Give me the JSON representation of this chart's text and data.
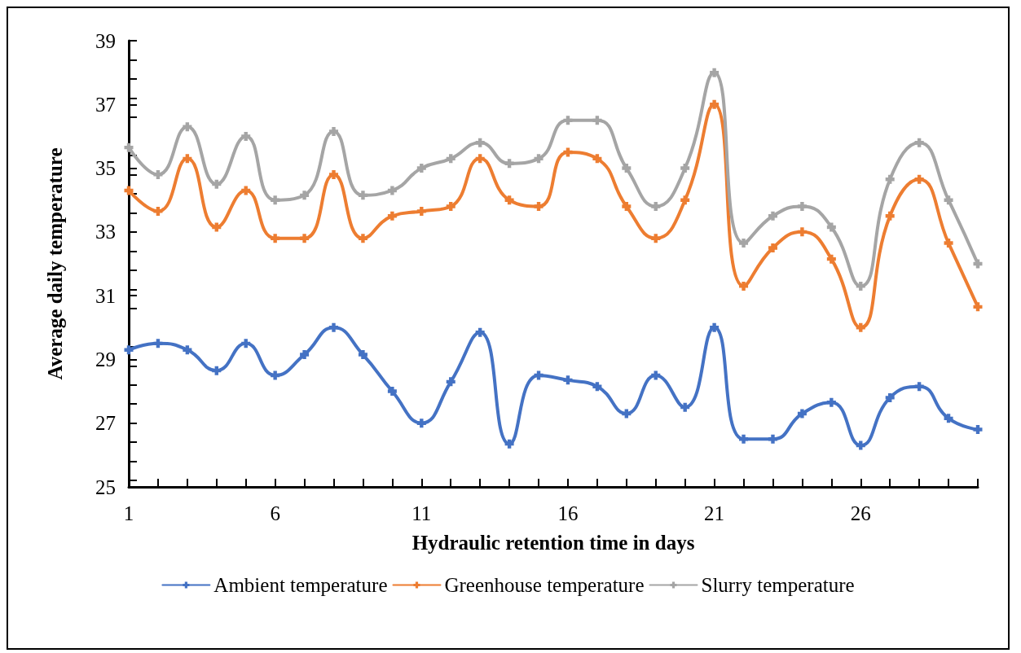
{
  "chart_data": {
    "type": "line",
    "xlabel": "Hydraulic retention time in days",
    "ylabel": "Average daily temperature",
    "x": [
      1,
      2,
      3,
      4,
      5,
      6,
      7,
      8,
      9,
      10,
      11,
      12,
      13,
      14,
      15,
      16,
      17,
      18,
      19,
      20,
      21,
      22,
      23,
      24,
      25,
      26,
      27,
      28,
      29,
      30
    ],
    "series": [
      {
        "name": "Ambient temperature",
        "color": "#4472c4",
        "values": [
          29.3,
          29.5,
          29.3,
          28.65,
          29.5,
          28.5,
          29.15,
          30.0,
          29.15,
          28.0,
          27.0,
          28.3,
          29.85,
          26.35,
          28.5,
          28.35,
          28.15,
          27.3,
          28.5,
          27.5,
          30.0,
          26.5,
          26.5,
          27.3,
          27.65,
          26.3,
          27.8,
          28.15,
          27.15,
          26.8
        ]
      },
      {
        "name": "Greenhouse temperature",
        "color": "#ed7d31",
        "values": [
          34.3,
          33.65,
          35.3,
          33.15,
          34.3,
          32.8,
          32.8,
          34.8,
          32.8,
          33.5,
          33.65,
          33.8,
          35.3,
          34.0,
          33.8,
          35.5,
          35.3,
          33.8,
          32.8,
          34.0,
          37.0,
          31.3,
          32.5,
          33.0,
          32.15,
          30.0,
          33.5,
          34.65,
          32.65,
          30.65
        ]
      },
      {
        "name": "Slurry temperature",
        "color": "#a5a5a5",
        "values": [
          35.65,
          34.8,
          36.3,
          34.5,
          36.0,
          34.0,
          34.15,
          36.15,
          34.15,
          34.3,
          35.0,
          35.3,
          35.8,
          35.15,
          35.3,
          36.5,
          36.5,
          35.0,
          33.8,
          35.0,
          38.0,
          32.65,
          33.5,
          33.8,
          33.15,
          31.3,
          34.65,
          35.8,
          34.0,
          32.0
        ]
      }
    ],
    "xlim": [
      1,
      30
    ],
    "xticks": [
      1,
      {
        "value": 2,
        "label": null
      },
      {
        "value": 3,
        "label": null
      },
      {
        "value": 4,
        "label": null
      },
      {
        "value": 5,
        "label": null
      },
      6,
      {
        "value": 7,
        "label": null
      },
      {
        "value": 8,
        "label": null
      },
      {
        "value": 9,
        "label": null
      },
      {
        "value": 10,
        "label": null
      },
      11,
      {
        "value": 12,
        "label": null
      },
      {
        "value": 13,
        "label": null
      },
      {
        "value": 14,
        "label": null
      },
      {
        "value": 15,
        "label": null
      },
      16,
      {
        "value": 17,
        "label": null
      },
      {
        "value": 18,
        "label": null
      },
      {
        "value": 19,
        "label": null
      },
      {
        "value": 20,
        "label": null
      },
      21,
      {
        "value": 22,
        "label": null
      },
      {
        "value": 23,
        "label": null
      },
      {
        "value": 24,
        "label": null
      },
      {
        "value": 25,
        "label": null
      },
      26,
      {
        "value": 27,
        "label": null
      },
      {
        "value": 28,
        "label": null
      },
      {
        "value": 29,
        "label": null
      },
      {
        "value": 30,
        "label": null
      }
    ],
    "ylim": [
      25,
      39
    ],
    "yticks": [
      25,
      27,
      29,
      31,
      33,
      35,
      37,
      39
    ],
    "grid": false,
    "legend": "bottom",
    "marker": "cross",
    "line_style": "solid"
  }
}
